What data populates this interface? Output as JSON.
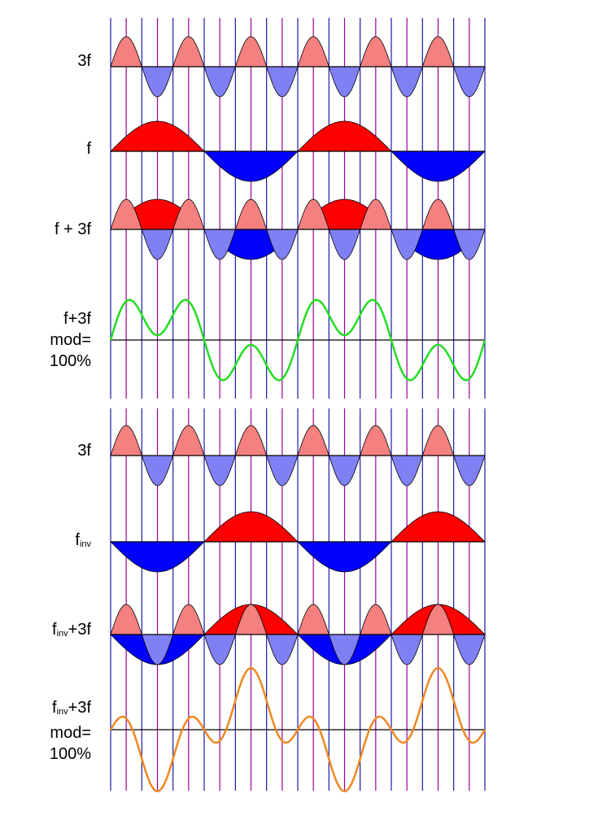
{
  "labels": {
    "row_3f_a": "3f",
    "row_f": "f",
    "row_sum_a": "f + 3f",
    "row_mod_a_1": "f+3f",
    "row_mod_a_2": "mod=",
    "row_mod_a_3": "100%",
    "row_3f_b": "3f",
    "row_finv_base": "f",
    "row_finv_sub": "inv",
    "row_sum_b_sub": "inv",
    "row_sum_b_tail": "+3f",
    "row_mod_b_sub": "inv",
    "row_mod_b_tail": "+3f",
    "row_mod_b_2": "mod=",
    "row_mod_b_3": "100%"
  },
  "colors": {
    "third_positive": "#f58080",
    "third_negative": "#8080f5",
    "fundamental_positive": "#ff0000",
    "fundamental_negative": "#0000ff",
    "grid_blue": "#1a1aa6",
    "grid_purple": "#990099",
    "mod_curve_a": "#22dd22",
    "mod_curve_b": "#ee8822"
  },
  "chart_data": {
    "type": "line",
    "fundamental_periods": 2,
    "harmonic": 3,
    "modulation_percent": 100,
    "rows": [
      {
        "id": "3f-a",
        "components": [
          "3f"
        ]
      },
      {
        "id": "f",
        "components": [
          "f"
        ]
      },
      {
        "id": "f+3f-a",
        "components": [
          "f",
          "3f"
        ]
      },
      {
        "id": "mod-a",
        "components": [
          "f",
          "3f"
        ],
        "curve": "g(x)=1.2*sin(x)+sin(3x)"
      },
      {
        "id": "3f-b",
        "components": [
          "3f"
        ]
      },
      {
        "id": "finv",
        "components": [
          "-f"
        ]
      },
      {
        "id": "finv+3f",
        "components": [
          "-f",
          "3f"
        ]
      },
      {
        "id": "mod-b",
        "components": [
          "-f",
          "3f"
        ],
        "curve": "g(x)=-1.2*sin(x)+sin(3x)"
      }
    ]
  }
}
